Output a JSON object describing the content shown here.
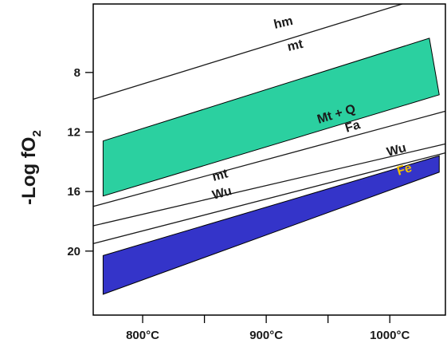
{
  "diagram": {
    "y_axis_title": "-Log fO",
    "y_axis_subscript": "2",
    "y_ticks": [
      {
        "value": 8,
        "label": "8"
      },
      {
        "value": 12,
        "label": "12"
      },
      {
        "value": 16,
        "label": "16"
      },
      {
        "value": 20,
        "label": "20"
      }
    ],
    "x_ticks": [
      {
        "value": 800,
        "label": "800°C"
      },
      {
        "value": 850,
        "label": ""
      },
      {
        "value": 900,
        "label": "900°C"
      },
      {
        "value": 950,
        "label": ""
      },
      {
        "value": 1000,
        "label": "1000°C"
      }
    ],
    "x_range": [
      760,
      1045
    ],
    "y_range": [
      24.3,
      3.4
    ],
    "buffers": [
      {
        "name": "hm-mt",
        "start": [
          760,
          9.8
        ],
        "end": [
          1010,
          3.4
        ]
      },
      {
        "name": "mt-Q-Fa",
        "start": [
          760,
          17.0
        ],
        "end": [
          1045,
          10.6
        ]
      },
      {
        "name": "mt-wu",
        "start": [
          760,
          18.3
        ],
        "end": [
          1045,
          12.8
        ]
      },
      {
        "name": "wu-fe",
        "start": [
          760,
          19.5
        ],
        "end": [
          1045,
          13.4
        ]
      }
    ],
    "fields": [
      {
        "name": "teal-band",
        "color": "#2bd0a0",
        "points": [
          [
            768,
            12.6
          ],
          [
            1032,
            5.7
          ],
          [
            1040,
            9.5
          ],
          [
            768,
            16.3
          ]
        ]
      },
      {
        "name": "blue-band",
        "color": "#3434c9",
        "points": [
          [
            768,
            20.3
          ],
          [
            1040,
            13.6
          ],
          [
            1040,
            14.7
          ],
          [
            768,
            22.9
          ]
        ]
      }
    ],
    "labels": {
      "hm": "hm",
      "mt_top": "mt",
      "mt_q": "Mt + Q",
      "fa": "Fa",
      "mt_mid": "mt",
      "wu_mid": "Wu",
      "wu_right": "Wu",
      "fe": "Fe"
    }
  }
}
